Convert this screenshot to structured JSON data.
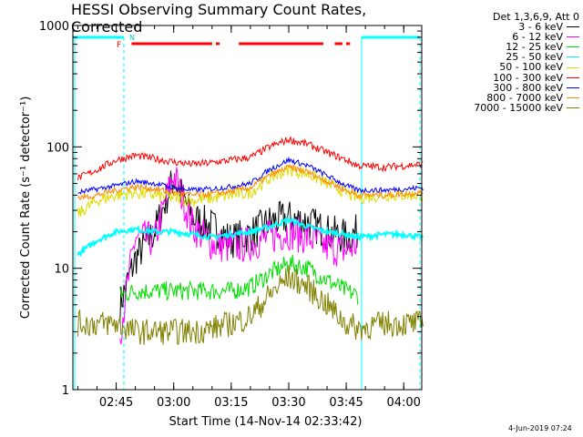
{
  "chart_data": {
    "type": "line",
    "title": "HESSI Observing Summary Count Rates, Corrected",
    "xlabel": "Start Time (14-Nov-14 02:33:42)",
    "ylabel": "Corrected Count Rate (s⁻¹ detector⁻¹)",
    "yscale": "log",
    "ylim": [
      1,
      1000
    ],
    "xlim_minutes_after_start": [
      0,
      91
    ],
    "x_ticks": [
      "02:45",
      "03:00",
      "03:15",
      "03:30",
      "03:45",
      "04:00"
    ],
    "y_ticks": [
      "1",
      "10",
      "100",
      "1000"
    ],
    "legend_header": "Det 1,3,6,9, Att 0",
    "legend_position": "right",
    "series": [
      {
        "name": "3 - 6 keV",
        "color": "#000000",
        "x": [
          "02:46",
          "02:50",
          "02:55",
          "03:00",
          "03:05",
          "03:10",
          "03:15",
          "03:20",
          "03:25",
          "03:30",
          "03:35",
          "03:40",
          "03:45",
          "03:48"
        ],
        "values": [
          5,
          12,
          20,
          55,
          26,
          22,
          17,
          19,
          24,
          26,
          24,
          20,
          18,
          20
        ]
      },
      {
        "name": "6 - 12 keV",
        "color": "#ff00ff",
        "x": [
          "02:46",
          "02:50",
          "02:55",
          "03:00",
          "03:05",
          "03:10",
          "03:15",
          "03:20",
          "03:25",
          "03:30",
          "03:35",
          "03:40",
          "03:45",
          "03:48"
        ],
        "values": [
          3,
          18,
          17,
          60,
          22,
          16,
          15,
          16,
          18,
          20,
          18,
          15,
          14,
          16
        ]
      },
      {
        "name": "12 - 25 keV",
        "color": "#00dd00",
        "x": [
          "02:46",
          "02:50",
          "02:55",
          "03:00",
          "03:05",
          "03:10",
          "03:15",
          "03:20",
          "03:25",
          "03:30",
          "03:35",
          "03:40",
          "03:45",
          "03:48"
        ],
        "values": [
          6,
          6.5,
          6.5,
          6.5,
          6.5,
          6.5,
          6.5,
          7,
          9,
          11,
          10,
          8,
          6.5,
          6
        ]
      },
      {
        "name": "25 - 50 keV",
        "color": "#00ffff",
        "x": [
          "02:35",
          "02:40",
          "02:45",
          "02:50",
          "02:55",
          "03:00",
          "03:05",
          "03:10",
          "03:15",
          "03:20",
          "03:25",
          "03:30",
          "03:35",
          "03:40",
          "03:45",
          "03:48",
          "03:55",
          "04:00",
          "04:05"
        ],
        "values": [
          13,
          17,
          20,
          21,
          20,
          20,
          19,
          18,
          19,
          20,
          22,
          25,
          22,
          20,
          19,
          18,
          19,
          19,
          18
        ]
      },
      {
        "name": "50 - 100 keV",
        "color": "#dddd00",
        "x": [
          "02:35",
          "02:40",
          "02:45",
          "02:50",
          "02:55",
          "03:00",
          "03:05",
          "03:10",
          "03:15",
          "03:20",
          "03:25",
          "03:30",
          "03:35",
          "03:40",
          "03:45",
          "03:48",
          "03:55",
          "04:00",
          "04:05"
        ],
        "values": [
          28,
          36,
          40,
          42,
          40,
          38,
          36,
          38,
          40,
          42,
          55,
          65,
          60,
          50,
          42,
          38,
          40,
          40,
          40
        ]
      },
      {
        "name": "100 - 300 keV",
        "color": "#ff0000",
        "x": [
          "02:35",
          "02:40",
          "02:45",
          "02:50",
          "02:55",
          "03:00",
          "03:05",
          "03:10",
          "03:15",
          "03:20",
          "03:25",
          "03:30",
          "03:35",
          "03:40",
          "03:45",
          "03:48",
          "03:55",
          "04:00",
          "04:05"
        ],
        "values": [
          55,
          65,
          78,
          85,
          80,
          75,
          72,
          74,
          78,
          82,
          100,
          115,
          105,
          90,
          78,
          70,
          68,
          70,
          72
        ]
      },
      {
        "name": "300 - 800 keV",
        "color": "#0000ff",
        "x": [
          "02:35",
          "02:40",
          "02:45",
          "02:50",
          "02:55",
          "03:00",
          "03:05",
          "03:10",
          "03:15",
          "03:20",
          "03:25",
          "03:30",
          "03:35",
          "03:40",
          "03:45",
          "03:48",
          "03:55",
          "04:00",
          "04:05"
        ],
        "values": [
          42,
          45,
          48,
          52,
          50,
          46,
          44,
          45,
          47,
          50,
          65,
          78,
          70,
          58,
          48,
          44,
          44,
          45,
          46
        ]
      },
      {
        "name": "800 - 7000 keV",
        "color": "#ff8800",
        "x": [
          "02:35",
          "02:40",
          "02:45",
          "02:50",
          "02:55",
          "03:00",
          "03:05",
          "03:10",
          "03:15",
          "03:20",
          "03:25",
          "03:30",
          "03:35",
          "03:40",
          "03:45",
          "03:48",
          "03:55",
          "04:00",
          "04:05"
        ],
        "values": [
          38,
          40,
          44,
          47,
          45,
          42,
          40,
          41,
          43,
          46,
          58,
          68,
          62,
          52,
          44,
          40,
          40,
          41,
          42
        ]
      },
      {
        "name": "7000 - 15000 keV",
        "color": "#808000",
        "x": [
          "02:35",
          "02:40",
          "02:45",
          "02:50",
          "02:55",
          "03:00",
          "03:05",
          "03:10",
          "03:15",
          "03:20",
          "03:25",
          "03:30",
          "03:35",
          "03:40",
          "03:45",
          "03:48",
          "03:55",
          "04:00",
          "04:05"
        ],
        "values": [
          3.5,
          3.5,
          3.5,
          3,
          3,
          3,
          3,
          3.2,
          3.5,
          4,
          6,
          8.5,
          7,
          5,
          3.5,
          3.2,
          3.5,
          3.5,
          3.5
        ]
      }
    ],
    "annotations": [
      {
        "label": "N",
        "color": "#00cccc"
      },
      {
        "label": "F",
        "color": "#ff0000"
      }
    ]
  },
  "footer_timestamp": "4-Jun-2019 07:24",
  "colors": {
    "background": "#ffffff",
    "axis": "#000000",
    "night_band": "#00ffff",
    "flag_band": "#ff0000"
  }
}
